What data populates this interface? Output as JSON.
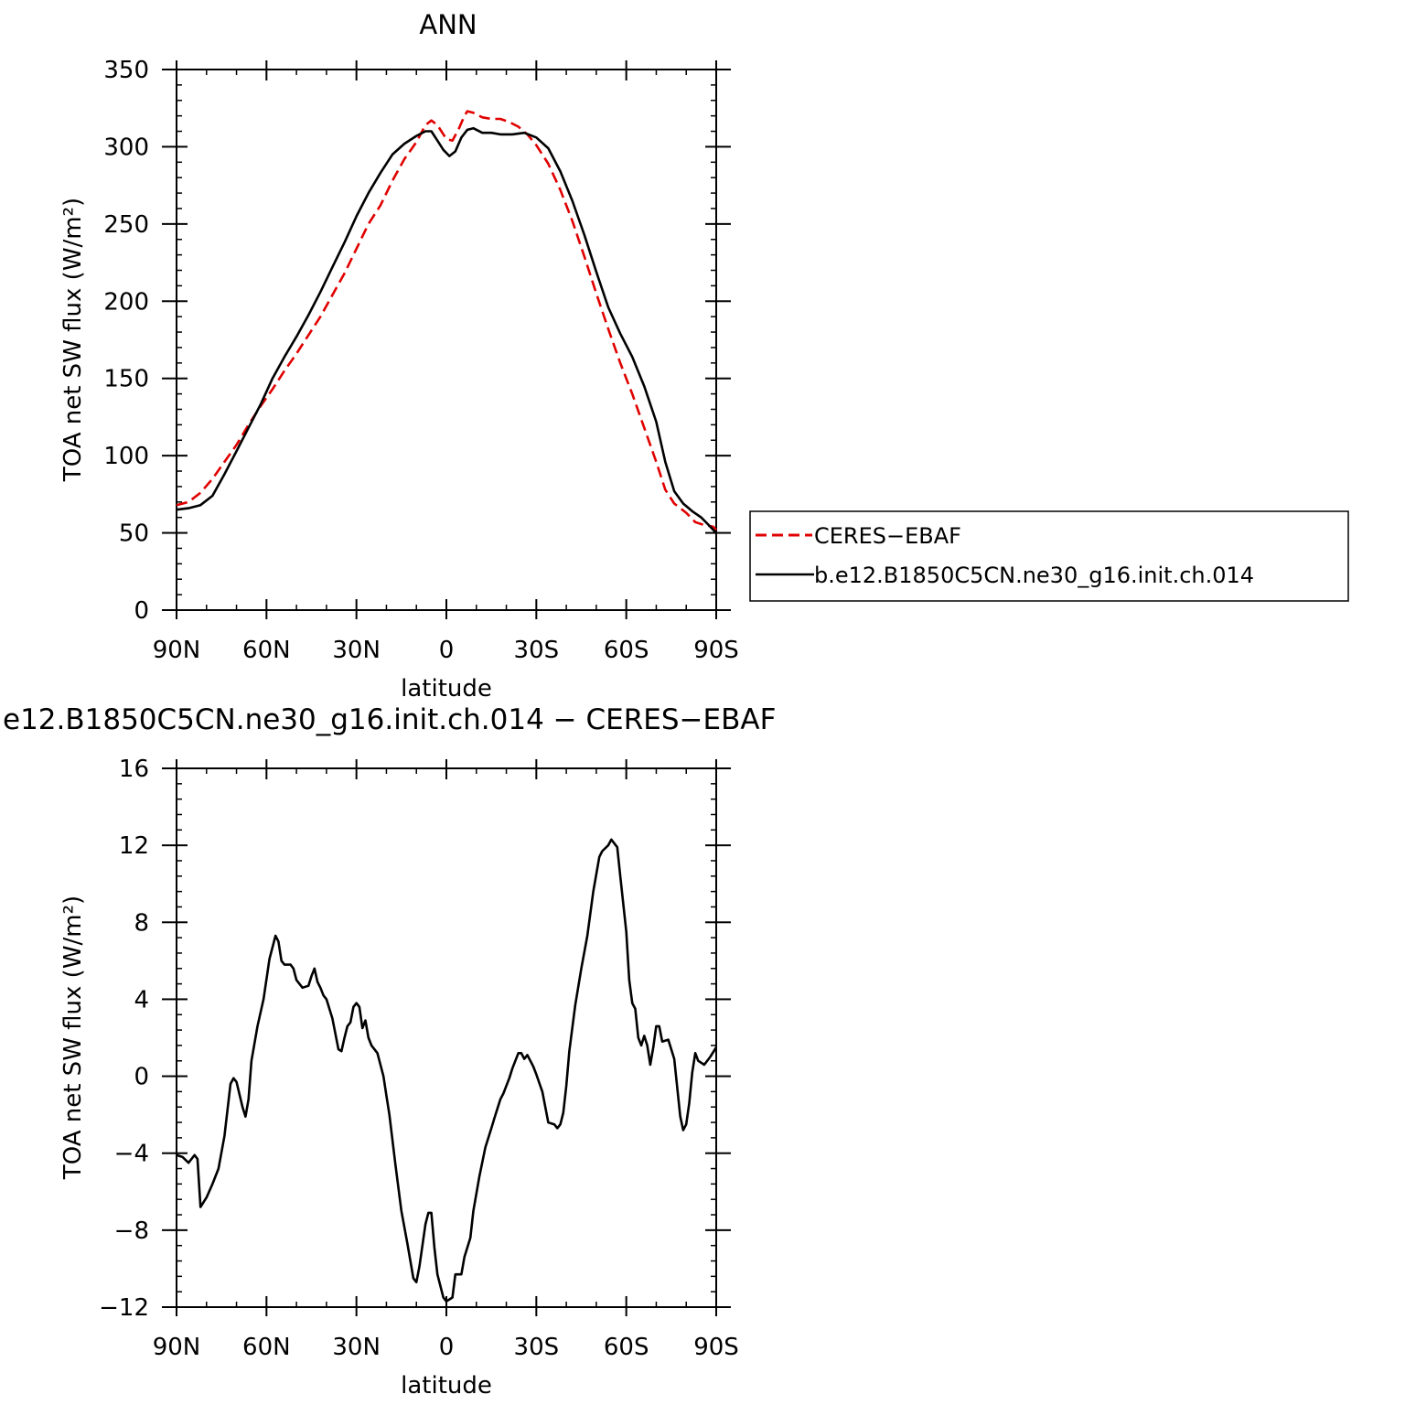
{
  "chart_data": [
    {
      "type": "line",
      "title": "ANN",
      "xlabel": "latitude",
      "ylabel": "TOA net SW flux (W/m²)",
      "xlim": [
        90,
        -90
      ],
      "ylim": [
        0,
        350
      ],
      "x_ticks": [
        90,
        60,
        30,
        0,
        -30,
        -60,
        -90
      ],
      "x_tick_labels": [
        "90N",
        "60N",
        "30N",
        "0",
        "30S",
        "60S",
        "90S"
      ],
      "y_ticks": [
        0,
        50,
        100,
        150,
        200,
        250,
        300,
        350
      ],
      "y_tick_labels": [
        "0",
        "50",
        "100",
        "150",
        "200",
        "250",
        "300",
        "350"
      ],
      "grid": false,
      "legend_position": "right",
      "series": [
        {
          "name": "CERES−EBAF",
          "color": "#e00000",
          "dash": "dashed",
          "points": [
            [
              90,
              68
            ],
            [
              86,
              70
            ],
            [
              82,
              76
            ],
            [
              78,
              85
            ],
            [
              74,
              96
            ],
            [
              70,
              107
            ],
            [
              66,
              120
            ],
            [
              62,
              132
            ],
            [
              58,
              143
            ],
            [
              54,
              155
            ],
            [
              50,
              166
            ],
            [
              46,
              178
            ],
            [
              42,
              190
            ],
            [
              38,
              204
            ],
            [
              34,
              218
            ],
            [
              30,
              234
            ],
            [
              26,
              250
            ],
            [
              22,
              262
            ],
            [
              18,
              278
            ],
            [
              14,
              292
            ],
            [
              10,
              303
            ],
            [
              7,
              314
            ],
            [
              5,
              317
            ],
            [
              3,
              314
            ],
            [
              0,
              305
            ],
            [
              -2,
              304
            ],
            [
              -4,
              311
            ],
            [
              -6,
              320
            ],
            [
              -7,
              323
            ],
            [
              -9,
              322
            ],
            [
              -12,
              319
            ],
            [
              -15,
              318
            ],
            [
              -18,
              318
            ],
            [
              -21,
              316
            ],
            [
              -24,
              313
            ],
            [
              -27,
              308
            ],
            [
              -30,
              301
            ],
            [
              -34,
              289
            ],
            [
              -38,
              272
            ],
            [
              -42,
              252
            ],
            [
              -46,
              229
            ],
            [
              -50,
              205
            ],
            [
              -54,
              182
            ],
            [
              -58,
              160
            ],
            [
              -62,
              140
            ],
            [
              -66,
              118
            ],
            [
              -70,
              96
            ],
            [
              -73,
              78
            ],
            [
              -76,
              69
            ],
            [
              -80,
              63
            ],
            [
              -83,
              57
            ],
            [
              -86,
              55
            ],
            [
              -89,
              54
            ],
            [
              -90,
              52
            ]
          ]
        },
        {
          "name": "b.e12.B1850C5CN.ne30_g16.init.ch.014",
          "color": "#000000",
          "dash": "solid",
          "points": [
            [
              90,
              65
            ],
            [
              86,
              66
            ],
            [
              82,
              68
            ],
            [
              78,
              74
            ],
            [
              74,
              88
            ],
            [
              70,
              103
            ],
            [
              66,
              118
            ],
            [
              62,
              133
            ],
            [
              58,
              150
            ],
            [
              54,
              164
            ],
            [
              50,
              177
            ],
            [
              46,
              191
            ],
            [
              42,
              206
            ],
            [
              38,
              222
            ],
            [
              34,
              238
            ],
            [
              30,
              255
            ],
            [
              26,
              270
            ],
            [
              22,
              283
            ],
            [
              18,
              295
            ],
            [
              14,
              302
            ],
            [
              10,
              307
            ],
            [
              7,
              310
            ],
            [
              5,
              310
            ],
            [
              3,
              304
            ],
            [
              1,
              298
            ],
            [
              -1,
              294
            ],
            [
              -3,
              297
            ],
            [
              -5,
              306
            ],
            [
              -7,
              311
            ],
            [
              -9,
              312
            ],
            [
              -12,
              309
            ],
            [
              -15,
              309
            ],
            [
              -18,
              308
            ],
            [
              -22,
              308
            ],
            [
              -26,
              309
            ],
            [
              -30,
              306
            ],
            [
              -34,
              299
            ],
            [
              -38,
              284
            ],
            [
              -42,
              265
            ],
            [
              -46,
              243
            ],
            [
              -50,
              219
            ],
            [
              -54,
              196
            ],
            [
              -58,
              179
            ],
            [
              -62,
              164
            ],
            [
              -66,
              145
            ],
            [
              -70,
              122
            ],
            [
              -73,
              96
            ],
            [
              -76,
              77
            ],
            [
              -79,
              69
            ],
            [
              -82,
              64
            ],
            [
              -85,
              60
            ],
            [
              -87,
              56
            ],
            [
              -89,
              52
            ],
            [
              -90,
              50
            ]
          ]
        }
      ]
    },
    {
      "type": "line",
      "title": "e12.B1850C5CN.ne30_g16.init.ch.014 − CERES−EBAF",
      "xlabel": "latitude",
      "ylabel": "TOA net SW flux (W/m²)",
      "xlim": [
        90,
        -90
      ],
      "ylim": [
        -12,
        16
      ],
      "x_ticks": [
        90,
        60,
        30,
        0,
        -30,
        -60,
        -90
      ],
      "x_tick_labels": [
        "90N",
        "60N",
        "30N",
        "0",
        "30S",
        "60S",
        "90S"
      ],
      "y_ticks": [
        -12,
        -8,
        -4,
        0,
        4,
        8,
        12,
        16
      ],
      "y_tick_labels": [
        "−12",
        "−8",
        "−4",
        "0",
        "4",
        "8",
        "12",
        "16"
      ],
      "grid": false,
      "series": [
        {
          "color": "#000000",
          "dash": "solid",
          "points": [
            [
              90,
              -4.1
            ],
            [
              88,
              -4.2
            ],
            [
              86,
              -4.5
            ],
            [
              84,
              -4.1
            ],
            [
              83,
              -4.3
            ],
            [
              82,
              -6.8
            ],
            [
              80,
              -6.3
            ],
            [
              78,
              -5.6
            ],
            [
              76,
              -4.8
            ],
            [
              74,
              -3.1
            ],
            [
              72,
              -0.4
            ],
            [
              71,
              -0.1
            ],
            [
              70,
              -0.3
            ],
            [
              68,
              -1.6
            ],
            [
              67,
              -2.1
            ],
            [
              66,
              -1.2
            ],
            [
              65,
              0.8
            ],
            [
              63,
              2.6
            ],
            [
              61,
              4.0
            ],
            [
              59,
              6.1
            ],
            [
              57,
              7.3
            ],
            [
              56,
              7.0
            ],
            [
              55,
              6.0
            ],
            [
              54,
              5.8
            ],
            [
              52,
              5.8
            ],
            [
              51,
              5.6
            ],
            [
              50,
              5.0
            ],
            [
              48,
              4.6
            ],
            [
              46,
              4.7
            ],
            [
              45,
              5.2
            ],
            [
              44,
              5.6
            ],
            [
              43,
              4.9
            ],
            [
              42,
              4.6
            ],
            [
              41,
              4.2
            ],
            [
              40,
              4.0
            ],
            [
              38,
              3.0
            ],
            [
              36,
              1.4
            ],
            [
              35,
              1.3
            ],
            [
              34,
              2.0
            ],
            [
              33,
              2.6
            ],
            [
              32,
              2.8
            ],
            [
              31,
              3.6
            ],
            [
              30,
              3.8
            ],
            [
              29,
              3.6
            ],
            [
              28,
              2.5
            ],
            [
              27,
              2.9
            ],
            [
              26,
              2.0
            ],
            [
              25,
              1.6
            ],
            [
              23,
              1.2
            ],
            [
              21,
              0.0
            ],
            [
              20,
              -1.0
            ],
            [
              19,
              -2.0
            ],
            [
              17,
              -4.6
            ],
            [
              15,
              -7.0
            ],
            [
              13,
              -8.7
            ],
            [
              11,
              -10.5
            ],
            [
              10,
              -10.7
            ],
            [
              9,
              -9.9
            ],
            [
              7,
              -7.7
            ],
            [
              6,
              -7.1
            ],
            [
              5,
              -7.1
            ],
            [
              4,
              -8.9
            ],
            [
              3,
              -10.3
            ],
            [
              1,
              -11.5
            ],
            [
              0,
              -11.7
            ],
            [
              -2,
              -11.5
            ],
            [
              -3,
              -10.3
            ],
            [
              -5,
              -10.3
            ],
            [
              -6,
              -9.4
            ],
            [
              -8,
              -8.4
            ],
            [
              -9,
              -7.0
            ],
            [
              -11,
              -5.2
            ],
            [
              -13,
              -3.7
            ],
            [
              -15,
              -2.7
            ],
            [
              -16,
              -2.2
            ],
            [
              -18,
              -1.2
            ],
            [
              -19,
              -0.9
            ],
            [
              -21,
              -0.1
            ],
            [
              -22,
              0.4
            ],
            [
              -23,
              0.8
            ],
            [
              -24,
              1.2
            ],
            [
              -25,
              1.2
            ],
            [
              -26,
              0.9
            ],
            [
              -27,
              1.1
            ],
            [
              -28,
              0.8
            ],
            [
              -29,
              0.5
            ],
            [
              -30,
              0.1
            ],
            [
              -32,
              -0.8
            ],
            [
              -34,
              -2.4
            ],
            [
              -36,
              -2.5
            ],
            [
              -37,
              -2.7
            ],
            [
              -38,
              -2.5
            ],
            [
              -39,
              -1.9
            ],
            [
              -40,
              -0.5
            ],
            [
              -41,
              1.3
            ],
            [
              -43,
              3.7
            ],
            [
              -45,
              5.6
            ],
            [
              -47,
              7.3
            ],
            [
              -49,
              9.6
            ],
            [
              -51,
              11.4
            ],
            [
              -52,
              11.7
            ],
            [
              -54,
              12.0
            ],
            [
              -55,
              12.3
            ],
            [
              -57,
              11.9
            ],
            [
              -58,
              10.4
            ],
            [
              -60,
              7.5
            ],
            [
              -61,
              5.0
            ],
            [
              -62,
              3.8
            ],
            [
              -63,
              3.5
            ],
            [
              -64,
              2.0
            ],
            [
              -65,
              1.6
            ],
            [
              -66,
              2.1
            ],
            [
              -67,
              1.6
            ],
            [
              -68,
              0.6
            ],
            [
              -69,
              1.5
            ],
            [
              -70,
              2.6
            ],
            [
              -71,
              2.6
            ],
            [
              -72,
              1.8
            ],
            [
              -74,
              1.9
            ],
            [
              -76,
              0.9
            ],
            [
              -78,
              -2.1
            ],
            [
              -79,
              -2.8
            ],
            [
              -80,
              -2.5
            ],
            [
              -81,
              -1.4
            ],
            [
              -82,
              0.2
            ],
            [
              -83,
              1.2
            ],
            [
              -84,
              0.8
            ],
            [
              -86,
              0.6
            ],
            [
              -88,
              1.0
            ],
            [
              -90,
              1.5
            ]
          ]
        }
      ]
    }
  ]
}
